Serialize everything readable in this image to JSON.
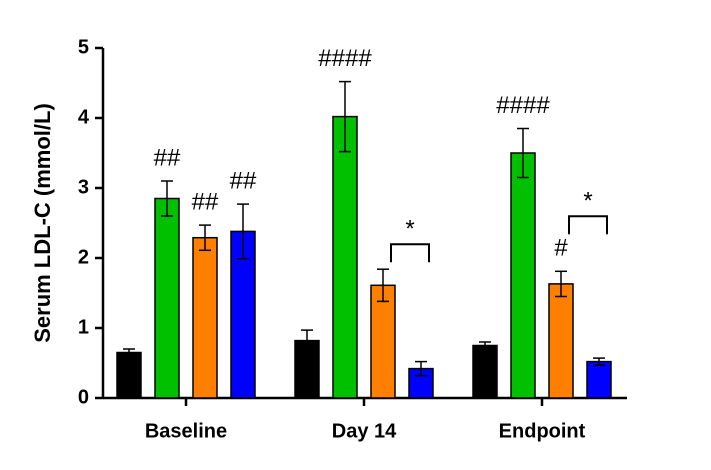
{
  "chart_data": {
    "type": "bar",
    "ylabel": "Serum LDL-C (mmol/L)",
    "categories": [
      "Baseline",
      "Day 14",
      "Endpoint"
    ],
    "series": [
      {
        "color": "#000000",
        "values": [
          0.65,
          0.82,
          0.75
        ],
        "errors": [
          0.05,
          0.15,
          0.05
        ]
      },
      {
        "color": "#00c000",
        "values": [
          2.85,
          4.02,
          3.5
        ],
        "errors": [
          0.25,
          0.5,
          0.35
        ]
      },
      {
        "color": "#ff8000",
        "values": [
          2.29,
          1.61,
          1.63
        ],
        "errors": [
          0.18,
          0.23,
          0.18
        ]
      },
      {
        "color": "#0000ff",
        "values": [
          2.38,
          0.42,
          0.52
        ],
        "errors": [
          0.39,
          0.1,
          0.05
        ]
      }
    ],
    "ylim": [
      0,
      5
    ],
    "yticks": [
      0,
      1,
      2,
      3,
      4,
      5
    ],
    "annotations": [
      {
        "text": "##",
        "category": 0,
        "series": 1
      },
      {
        "text": "##",
        "category": 0,
        "series": 2
      },
      {
        "text": "##",
        "category": 0,
        "series": 3
      },
      {
        "text": "####",
        "category": 1,
        "series": 1
      },
      {
        "text": "####",
        "category": 2,
        "series": 1
      },
      {
        "text": "#",
        "category": 2,
        "series": 2
      }
    ],
    "brackets": [
      {
        "text": "*",
        "category": 1,
        "from_series": 2,
        "to_series": 3
      },
      {
        "text": "*",
        "category": 2,
        "from_series": 2,
        "to_series": 3
      }
    ]
  }
}
